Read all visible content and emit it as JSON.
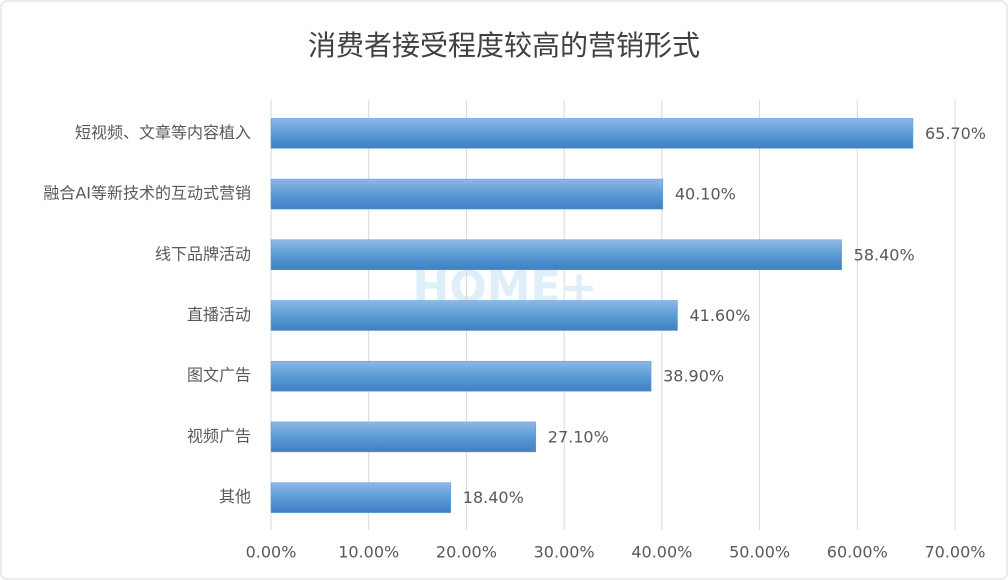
{
  "chart_data": {
    "type": "bar",
    "orientation": "horizontal",
    "title": "消费者接受程度较高的营销形式",
    "watermark": "HOME+",
    "categories": [
      "短视频、文章等内容植入",
      "融合AI等新技术的互动式营销",
      "线下品牌活动",
      "直播活动",
      "图文广告",
      "视频广告",
      "其他"
    ],
    "values": [
      65.7,
      40.1,
      58.4,
      41.6,
      38.9,
      27.1,
      18.4
    ],
    "value_labels": [
      "65.70%",
      "40.10%",
      "58.40%",
      "41.60%",
      "38.90%",
      "27.10%",
      "18.40%"
    ],
    "color": "#5b9bd5",
    "xlim": [
      0,
      70
    ],
    "xticks": [
      {
        "value": 0,
        "label": "0.00%"
      },
      {
        "value": 10,
        "label": "10.00%"
      },
      {
        "value": 20,
        "label": "20.00%"
      },
      {
        "value": 30,
        "label": "30.00%"
      },
      {
        "value": 40,
        "label": "40.00%"
      },
      {
        "value": 50,
        "label": "50.00%"
      },
      {
        "value": 60,
        "label": "60.00%"
      },
      {
        "value": 70,
        "label": "70.00%"
      }
    ],
    "grid": true
  }
}
